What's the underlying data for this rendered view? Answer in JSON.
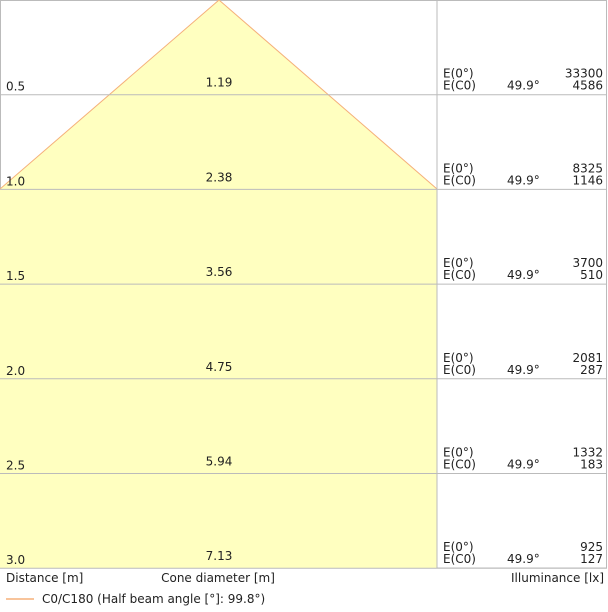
{
  "rows": [
    {
      "distance": "0.5",
      "diameter": "1.19",
      "e0_label": "E(0°)",
      "e0": "33300",
      "ec0_label": "E(C0)",
      "angle": "49.9°",
      "ec0": "4586"
    },
    {
      "distance": "1.0",
      "diameter": "2.38",
      "e0_label": "E(0°)",
      "e0": "8325",
      "ec0_label": "E(C0)",
      "angle": "49.9°",
      "ec0": "1146"
    },
    {
      "distance": "1.5",
      "diameter": "3.56",
      "e0_label": "E(0°)",
      "e0": "3700",
      "ec0_label": "E(C0)",
      "angle": "49.9°",
      "ec0": "510"
    },
    {
      "distance": "2.0",
      "diameter": "4.75",
      "e0_label": "E(0°)",
      "e0": "2081",
      "ec0_label": "E(C0)",
      "angle": "49.9°",
      "ec0": "287"
    },
    {
      "distance": "2.5",
      "diameter": "5.94",
      "e0_label": "E(0°)",
      "e0": "1332",
      "ec0_label": "E(C0)",
      "angle": "49.9°",
      "ec0": "183"
    },
    {
      "distance": "3.0",
      "diameter": "7.13",
      "e0_label": "E(0°)",
      "e0": "925",
      "ec0_label": "E(C0)",
      "angle": "49.9°",
      "ec0": "127"
    }
  ],
  "footer": {
    "distance": "Distance [m]",
    "diameter": "Cone diameter [m]",
    "illuminance": "Illuminance [lx]"
  },
  "legend": {
    "label": "C0/C180 (Half beam angle [°]: 99.8°)"
  }
}
